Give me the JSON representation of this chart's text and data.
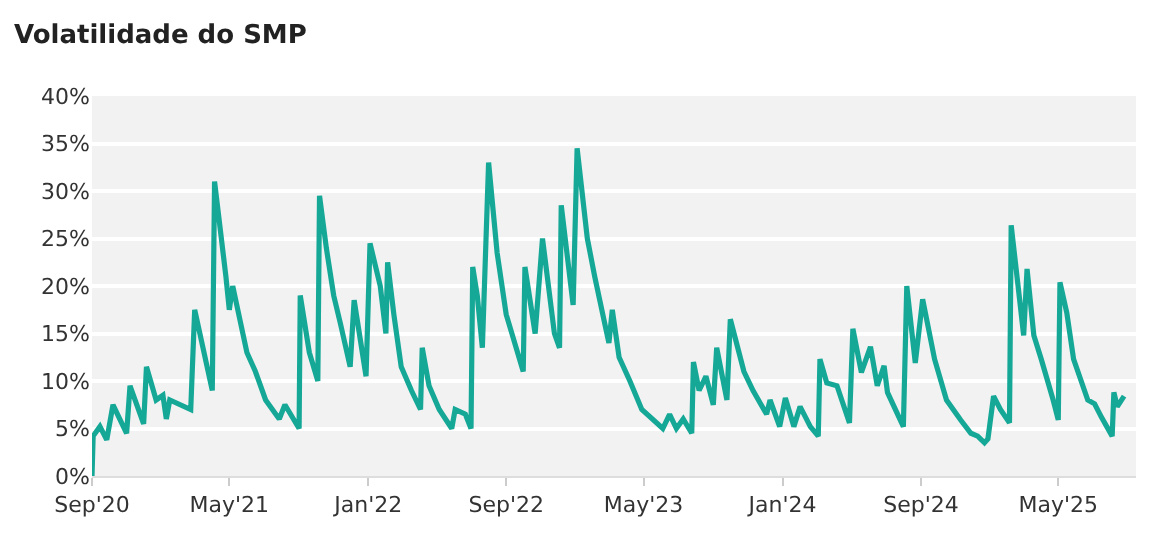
{
  "chart_data": {
    "type": "line",
    "title": "Volatilidade do SMP",
    "x": [
      "2020-09-01",
      "2020-09-03",
      "2020-09-15",
      "2020-09-27",
      "2020-10-08",
      "2020-11-01",
      "2020-11-07",
      "2020-12-01",
      "2020-12-06",
      "2020-12-23",
      "2021-01-04",
      "2021-01-10",
      "2021-01-16",
      "2021-02-22",
      "2021-03-01",
      "2021-04-01",
      "2021-04-05",
      "2021-04-25",
      "2021-05-01",
      "2021-05-07",
      "2021-06-01",
      "2021-06-16",
      "2021-07-04",
      "2021-07-28",
      "2021-08-07",
      "2021-09-01",
      "2021-09-03",
      "2021-09-19",
      "2021-10-04",
      "2021-10-07",
      "2021-10-19",
      "2021-11-01",
      "2021-11-13",
      "2021-11-30",
      "2021-12-07",
      "2021-12-28",
      "2022-01-04",
      "2022-01-22",
      "2022-02-01",
      "2022-02-04",
      "2022-02-15",
      "2022-02-28",
      "2022-03-18",
      "2022-04-03",
      "2022-04-06",
      "2022-04-18",
      "2022-05-06",
      "2022-05-28",
      "2022-06-03",
      "2022-06-21",
      "2022-07-01",
      "2022-07-04",
      "2022-07-12",
      "2022-07-21",
      "2022-08-01",
      "2022-08-16",
      "2022-09-01",
      "2022-10-01",
      "2022-10-04",
      "2022-10-22",
      "2022-11-04",
      "2022-11-25",
      "2022-12-04",
      "2022-12-07",
      "2022-12-28",
      "2023-01-04",
      "2023-01-22",
      "2023-02-04",
      "2023-03-01",
      "2023-03-07",
      "2023-03-19",
      "2023-04-07",
      "2023-04-28",
      "2023-06-04",
      "2023-06-16",
      "2023-06-28",
      "2023-07-10",
      "2023-07-25",
      "2023-07-28",
      "2023-08-07",
      "2023-08-19",
      "2023-09-01",
      "2023-09-07",
      "2023-09-25",
      "2023-10-01",
      "2023-10-25",
      "2023-11-10",
      "2023-12-04",
      "2023-12-10",
      "2023-12-27",
      "2024-01-06",
      "2024-01-21",
      "2024-02-01",
      "2024-02-19",
      "2024-03-04",
      "2024-03-07",
      "2024-03-19",
      "2024-04-06",
      "2024-04-28",
      "2024-05-04",
      "2024-05-19",
      "2024-06-04",
      "2024-06-16",
      "2024-06-28",
      "2024-07-04",
      "2024-08-01",
      "2024-08-07",
      "2024-08-22",
      "2024-09-04",
      "2024-09-25",
      "2024-10-16",
      "2024-11-10",
      "2024-11-28",
      "2024-12-10",
      "2024-12-22",
      "2024-12-28",
      "2025-01-07",
      "2025-01-19",
      "2025-02-04",
      "2025-02-07",
      "2025-03-01",
      "2025-03-07",
      "2025-03-19",
      "2025-04-01",
      "2025-04-22",
      "2025-05-01",
      "2025-05-04",
      "2025-05-16",
      "2025-05-28",
      "2025-06-22",
      "2025-07-04",
      "2025-07-16",
      "2025-08-04",
      "2025-08-07",
      "2025-08-13",
      "2025-08-25"
    ],
    "series": [
      {
        "color": "#16a897",
        "values": [
          0,
          4.2,
          5.2,
          3.8,
          7.5,
          4.5,
          9.5,
          5.5,
          11.5,
          8,
          8.5,
          6,
          8,
          7,
          17.5,
          9,
          31,
          21,
          17.5,
          20,
          13,
          11,
          8,
          6,
          7.5,
          5,
          19,
          13,
          10,
          29.5,
          24,
          19,
          16,
          11.5,
          18.5,
          10.5,
          24.5,
          20,
          15,
          22.5,
          17,
          11.5,
          9,
          7,
          13.5,
          9.5,
          7,
          5,
          7,
          6.5,
          5,
          22,
          19,
          13.5,
          33,
          23.5,
          17,
          11,
          22,
          15,
          25,
          15,
          13.5,
          28.5,
          18,
          34.5,
          25,
          21,
          14,
          17.5,
          12.5,
          10,
          7,
          5,
          6.5,
          5,
          6,
          4.5,
          12,
          9,
          10.5,
          7.5,
          13.5,
          8,
          16.5,
          11,
          9,
          6.5,
          8,
          5.2,
          8.2,
          5.2,
          7.3,
          5.2,
          4.2,
          12.3,
          9.8,
          9.5,
          5.6,
          15.5,
          10.9,
          13.6,
          9.5,
          11.6,
          8.8,
          5.2,
          20,
          11.9,
          18.6,
          12.3,
          8,
          5.9,
          4.5,
          4.2,
          3.5,
          3.9,
          8.4,
          7,
          5.6,
          26.4,
          14.8,
          21.8,
          14.8,
          12.3,
          8,
          5.9,
          20.4,
          17.2,
          12.3,
          8,
          7.6,
          6.2,
          4.2,
          8.8,
          7.3,
          8.4
        ]
      }
    ],
    "xlim": [
      "2020-09-01",
      "2025-09-15"
    ],
    "xticks": [
      {
        "value": "2020-09-01",
        "label": "Sep'20"
      },
      {
        "value": "2021-05-01",
        "label": "May'21"
      },
      {
        "value": "2022-01-01",
        "label": "Jan'22"
      },
      {
        "value": "2022-09-01",
        "label": "Sep'22"
      },
      {
        "value": "2023-05-01",
        "label": "May'23"
      },
      {
        "value": "2024-01-01",
        "label": "Jan'24"
      },
      {
        "value": "2024-09-01",
        "label": "Sep'24"
      },
      {
        "value": "2025-05-01",
        "label": "May'25"
      }
    ],
    "ylim": [
      0,
      40
    ],
    "yticks": [
      {
        "value": 0,
        "label": "0%"
      },
      {
        "value": 5,
        "label": "5%"
      },
      {
        "value": 10,
        "label": "10%"
      },
      {
        "value": 15,
        "label": "15%"
      },
      {
        "value": 20,
        "label": "20%"
      },
      {
        "value": 25,
        "label": "25%"
      },
      {
        "value": 30,
        "label": "30%"
      },
      {
        "value": 35,
        "label": "35%"
      },
      {
        "value": 40,
        "label": "40%"
      }
    ],
    "grid": "y",
    "line_style": "solid",
    "marker": "none"
  }
}
